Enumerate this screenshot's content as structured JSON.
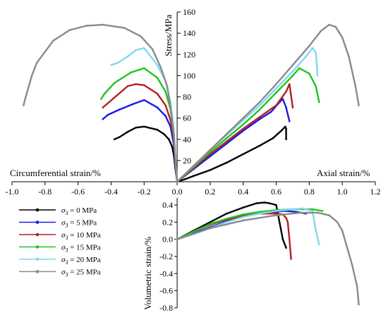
{
  "chart_data": {
    "type": "line",
    "y_axis_title": "Stress/MPa",
    "x_axis_title_left": "Circumferential strain/%",
    "x_axis_title_right": "Axial strain/%",
    "volumetric_axis_title": "Volumetric strain/%",
    "x_ticks": [
      "-1.0",
      "-0.8",
      "-0.6",
      "-0.4",
      "-0.2",
      "0.0",
      "0.2",
      "0.4",
      "0.6",
      "0.8",
      "1.0",
      "1.2"
    ],
    "x_tick_values": [
      -1.0,
      -0.8,
      -0.6,
      -0.4,
      -0.2,
      0.0,
      0.2,
      0.4,
      0.6,
      0.8,
      1.0,
      1.2
    ],
    "stress_ticks": [
      "20",
      "40",
      "60",
      "80",
      "100",
      "120",
      "140",
      "160"
    ],
    "stress_tick_values": [
      20,
      40,
      60,
      80,
      100,
      120,
      140,
      160
    ],
    "vol_ticks": [
      "0.4",
      "0.2",
      "0.0",
      "-0.2",
      "-0.4",
      "-0.6",
      "-0.8"
    ],
    "vol_tick_values": [
      0.4,
      0.2,
      0.0,
      -0.2,
      -0.4,
      -0.6,
      -0.8
    ],
    "xlim": [
      -1.0,
      1.2
    ],
    "stress_ylim": [
      0,
      160
    ],
    "vol_ylim": [
      -0.8,
      0.4
    ],
    "series": [
      {
        "name": "σ3 = 0 MPa",
        "label_sub": "3",
        "label_rest": " = 0 MPa",
        "color": "#000000",
        "axial": [
          [
            0,
            0
          ],
          [
            0.05,
            2.5
          ],
          [
            0.1,
            5.5
          ],
          [
            0.2,
            11
          ],
          [
            0.3,
            18
          ],
          [
            0.4,
            26
          ],
          [
            0.5,
            34
          ],
          [
            0.58,
            41
          ],
          [
            0.63,
            48
          ],
          [
            0.655,
            52
          ],
          [
            0.66,
            50
          ],
          [
            0.66,
            40
          ]
        ],
        "circ": [
          [
            0,
            0
          ],
          [
            -0.01,
            12
          ],
          [
            -0.02,
            25
          ],
          [
            -0.03,
            33
          ],
          [
            -0.05,
            40
          ],
          [
            -0.08,
            45
          ],
          [
            -0.12,
            49
          ],
          [
            -0.2,
            52
          ],
          [
            -0.25,
            51
          ],
          [
            -0.3,
            47
          ],
          [
            -0.35,
            42
          ],
          [
            -0.38,
            40
          ]
        ],
        "vol": [
          [
            0,
            0
          ],
          [
            0.1,
            0.1
          ],
          [
            0.2,
            0.2
          ],
          [
            0.3,
            0.3
          ],
          [
            0.4,
            0.37
          ],
          [
            0.48,
            0.42
          ],
          [
            0.53,
            0.43
          ],
          [
            0.56,
            0.42
          ],
          [
            0.6,
            0.4
          ],
          [
            0.62,
            0.2
          ],
          [
            0.64,
            0.0
          ],
          [
            0.66,
            -0.1
          ]
        ]
      },
      {
        "name": "σ3 = 5 MPa",
        "label_sub": "3",
        "label_rest": " = 5 MPa",
        "color": "#1a1ae6",
        "axial": [
          [
            0,
            0
          ],
          [
            0.1,
            12
          ],
          [
            0.2,
            24
          ],
          [
            0.3,
            36
          ],
          [
            0.4,
            48
          ],
          [
            0.5,
            59
          ],
          [
            0.57,
            66
          ],
          [
            0.62,
            75
          ],
          [
            0.64,
            78
          ],
          [
            0.66,
            70
          ],
          [
            0.68,
            57
          ]
        ],
        "circ": [
          [
            0,
            0
          ],
          [
            -0.01,
            15
          ],
          [
            -0.02,
            35
          ],
          [
            -0.04,
            52
          ],
          [
            -0.07,
            62
          ],
          [
            -0.12,
            70
          ],
          [
            -0.2,
            77
          ],
          [
            -0.27,
            73
          ],
          [
            -0.35,
            68
          ],
          [
            -0.42,
            63
          ],
          [
            -0.45,
            59
          ]
        ],
        "vol": [
          [
            0,
            0
          ],
          [
            0.1,
            0.07
          ],
          [
            0.2,
            0.14
          ],
          [
            0.3,
            0.21
          ],
          [
            0.4,
            0.27
          ],
          [
            0.5,
            0.3
          ],
          [
            0.55,
            0.31
          ],
          [
            0.6,
            0.32
          ],
          [
            0.64,
            0.33
          ],
          [
            0.66,
            0.33
          ],
          [
            0.72,
            0.32
          ],
          [
            0.78,
            0.3
          ]
        ]
      },
      {
        "name": "σ3 = 10 MPa",
        "label_sub": "3",
        "label_rest": " = 10 MPa",
        "color": "#b22222",
        "axial": [
          [
            0,
            0
          ],
          [
            0.1,
            13
          ],
          [
            0.2,
            26
          ],
          [
            0.3,
            38
          ],
          [
            0.4,
            50
          ],
          [
            0.5,
            61
          ],
          [
            0.6,
            72
          ],
          [
            0.66,
            85
          ],
          [
            0.68,
            92
          ],
          [
            0.7,
            70
          ]
        ],
        "circ": [
          [
            0,
            0
          ],
          [
            -0.01,
            18
          ],
          [
            -0.02,
            40
          ],
          [
            -0.04,
            58
          ],
          [
            -0.07,
            72
          ],
          [
            -0.12,
            83
          ],
          [
            -0.2,
            91
          ],
          [
            -0.25,
            92
          ],
          [
            -0.3,
            90
          ],
          [
            -0.45,
            70
          ]
        ],
        "vol": [
          [
            0,
            0
          ],
          [
            0.1,
            0.09
          ],
          [
            0.2,
            0.17
          ],
          [
            0.3,
            0.23
          ],
          [
            0.4,
            0.27
          ],
          [
            0.5,
            0.3
          ],
          [
            0.6,
            0.3
          ],
          [
            0.64,
            0.29
          ],
          [
            0.66,
            0.25
          ],
          [
            0.67,
            0.2
          ],
          [
            0.68,
            0.0
          ],
          [
            0.69,
            -0.23
          ]
        ]
      },
      {
        "name": "σ3 = 15 MPa",
        "label_sub": "3",
        "label_rest": " = 15 MPa",
        "color": "#22c322",
        "axial": [
          [
            0,
            0
          ],
          [
            0.1,
            14
          ],
          [
            0.2,
            28
          ],
          [
            0.3,
            41
          ],
          [
            0.4,
            54
          ],
          [
            0.5,
            68
          ],
          [
            0.6,
            84
          ],
          [
            0.7,
            100
          ],
          [
            0.74,
            107
          ],
          [
            0.8,
            102
          ],
          [
            0.84,
            90
          ],
          [
            0.86,
            75
          ]
        ],
        "circ": [
          [
            0,
            0
          ],
          [
            -0.01,
            20
          ],
          [
            -0.02,
            45
          ],
          [
            -0.04,
            68
          ],
          [
            -0.07,
            85
          ],
          [
            -0.12,
            98
          ],
          [
            -0.2,
            107
          ],
          [
            -0.28,
            103
          ],
          [
            -0.38,
            93
          ],
          [
            -0.44,
            83
          ],
          [
            -0.46,
            78
          ]
        ],
        "vol": [
          [
            0,
            0
          ],
          [
            0.1,
            0.09
          ],
          [
            0.2,
            0.18
          ],
          [
            0.3,
            0.24
          ],
          [
            0.4,
            0.29
          ],
          [
            0.5,
            0.32
          ],
          [
            0.6,
            0.34
          ],
          [
            0.7,
            0.35
          ],
          [
            0.76,
            0.35
          ],
          [
            0.82,
            0.35
          ],
          [
            0.88,
            0.33
          ]
        ]
      },
      {
        "name": "σ3 = 20 MPa",
        "label_sub": "3",
        "label_rest": " = 20 MPa",
        "color": "#7fd8f0",
        "axial": [
          [
            0,
            0
          ],
          [
            0.1,
            15
          ],
          [
            0.2,
            30
          ],
          [
            0.3,
            44
          ],
          [
            0.4,
            58
          ],
          [
            0.5,
            72
          ],
          [
            0.6,
            88
          ],
          [
            0.7,
            104
          ],
          [
            0.78,
            118
          ],
          [
            0.82,
            126
          ],
          [
            0.84,
            122
          ],
          [
            0.85,
            100
          ]
        ],
        "circ": [
          [
            0,
            0
          ],
          [
            -0.01,
            22
          ],
          [
            -0.02,
            50
          ],
          [
            -0.04,
            75
          ],
          [
            -0.07,
            95
          ],
          [
            -0.12,
            110
          ],
          [
            -0.2,
            126
          ],
          [
            -0.25,
            124
          ],
          [
            -0.3,
            118
          ],
          [
            -0.36,
            112
          ],
          [
            -0.4,
            110
          ]
        ],
        "vol": [
          [
            0,
            0
          ],
          [
            0.1,
            0.06
          ],
          [
            0.2,
            0.13
          ],
          [
            0.3,
            0.2
          ],
          [
            0.4,
            0.26
          ],
          [
            0.5,
            0.3
          ],
          [
            0.6,
            0.33
          ],
          [
            0.7,
            0.35
          ],
          [
            0.76,
            0.36
          ],
          [
            0.82,
            0.33
          ],
          [
            0.84,
            0.1
          ],
          [
            0.86,
            -0.06
          ]
        ]
      },
      {
        "name": "σ3 = 25 MPa",
        "label_sub": "3",
        "label_rest": " = 25 MPa",
        "color": "#8a8a8a",
        "axial": [
          [
            0,
            0
          ],
          [
            0.1,
            15
          ],
          [
            0.2,
            30
          ],
          [
            0.3,
            45
          ],
          [
            0.4,
            60
          ],
          [
            0.5,
            75
          ],
          [
            0.6,
            92
          ],
          [
            0.7,
            110
          ],
          [
            0.8,
            128
          ],
          [
            0.87,
            142
          ],
          [
            0.92,
            148
          ],
          [
            0.96,
            146
          ],
          [
            1.0,
            136
          ],
          [
            1.04,
            118
          ],
          [
            1.08,
            90
          ],
          [
            1.1,
            72
          ]
        ],
        "circ": [
          [
            0,
            0
          ],
          [
            -0.01,
            20
          ],
          [
            -0.02,
            45
          ],
          [
            -0.04,
            70
          ],
          [
            -0.06,
            90
          ],
          [
            -0.1,
            108
          ],
          [
            -0.15,
            125
          ],
          [
            -0.22,
            137
          ],
          [
            -0.32,
            145
          ],
          [
            -0.45,
            148
          ],
          [
            -0.55,
            147
          ],
          [
            -0.65,
            143
          ],
          [
            -0.75,
            133
          ],
          [
            -0.85,
            112
          ],
          [
            -0.88,
            100
          ],
          [
            -0.92,
            78
          ],
          [
            -0.93,
            72
          ]
        ],
        "vol": [
          [
            0,
            0
          ],
          [
            0.2,
            0.13
          ],
          [
            0.4,
            0.22
          ],
          [
            0.6,
            0.28
          ],
          [
            0.75,
            0.31
          ],
          [
            0.85,
            0.31
          ],
          [
            0.92,
            0.28
          ],
          [
            0.97,
            0.2
          ],
          [
            1.0,
            0.1
          ],
          [
            1.03,
            -0.1
          ],
          [
            1.06,
            -0.3
          ],
          [
            1.09,
            -0.55
          ],
          [
            1.1,
            -0.76
          ]
        ]
      }
    ]
  }
}
